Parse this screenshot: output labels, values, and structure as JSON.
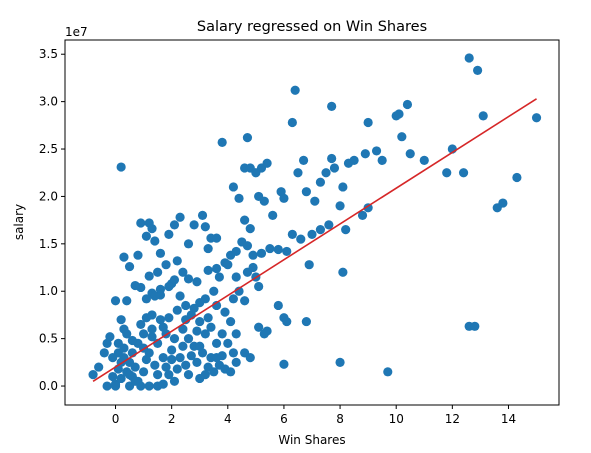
{
  "chart_data": {
    "type": "scatter",
    "title": "Salary regressed on Win Shares",
    "xlabel": "Win Shares",
    "ylabel": "salary",
    "y_offset_label": "1e7",
    "xlim": [
      -1.8,
      15.8
    ],
    "ylim": [
      -0.2,
      3.65
    ],
    "x_ticks": [
      0,
      2,
      4,
      6,
      8,
      10,
      12,
      14
    ],
    "x_tick_labels": [
      "0",
      "2",
      "4",
      "6",
      "8",
      "10",
      "12",
      "14"
    ],
    "y_ticks": [
      0.0,
      0.5,
      1.0,
      1.5,
      2.0,
      2.5,
      3.0,
      3.5
    ],
    "y_tick_labels": [
      "0.0",
      "0.5",
      "1.0",
      "1.5",
      "2.0",
      "2.5",
      "3.0",
      "3.5"
    ],
    "grid": false,
    "marker_color": "#1f77b4",
    "line_color": "#d62728",
    "series": [
      {
        "kind": "points",
        "points": [
          [
            0.2,
            2.31
          ],
          [
            0.3,
            1.36
          ],
          [
            0.5,
            1.26
          ],
          [
            0.8,
            1.38
          ],
          [
            0.9,
            1.72
          ],
          [
            1.2,
            1.72
          ],
          [
            1.3,
            1.66
          ],
          [
            1.1,
            1.58
          ],
          [
            1.4,
            1.53
          ],
          [
            1.6,
            1.4
          ],
          [
            1.9,
            1.6
          ],
          [
            2.1,
            1.7
          ],
          [
            2.3,
            1.78
          ],
          [
            2.8,
            1.7
          ],
          [
            3.1,
            1.8
          ],
          [
            3.2,
            1.68
          ],
          [
            3.4,
            1.56
          ],
          [
            3.6,
            1.56
          ],
          [
            3.3,
            1.45
          ],
          [
            2.6,
            1.5
          ],
          [
            2.2,
            1.32
          ],
          [
            1.8,
            1.28
          ],
          [
            1.5,
            1.2
          ],
          [
            1.2,
            1.16
          ],
          [
            0.9,
            1.04
          ],
          [
            0.7,
            1.06
          ],
          [
            1.3,
            0.98
          ],
          [
            1.6,
            1.02
          ],
          [
            2.0,
            1.08
          ],
          [
            2.4,
            1.2
          ],
          [
            2.6,
            1.13
          ],
          [
            2.9,
            1.1
          ],
          [
            3.3,
            1.22
          ],
          [
            3.6,
            1.24
          ],
          [
            3.9,
            1.3
          ],
          [
            4.1,
            1.38
          ],
          [
            4.3,
            1.42
          ],
          [
            4.5,
            1.52
          ],
          [
            4.7,
            1.48
          ],
          [
            4.9,
            1.38
          ],
          [
            5.2,
            1.4
          ],
          [
            5.5,
            1.45
          ],
          [
            5.8,
            1.44
          ],
          [
            6.1,
            1.42
          ],
          [
            6.3,
            1.6
          ],
          [
            6.6,
            1.55
          ],
          [
            7.0,
            1.6
          ],
          [
            7.3,
            1.65
          ],
          [
            7.6,
            1.7
          ],
          [
            8.0,
            1.9
          ],
          [
            8.2,
            1.65
          ],
          [
            8.8,
            1.8
          ],
          [
            9.0,
            1.88
          ],
          [
            4.2,
            2.1
          ],
          [
            4.4,
            1.98
          ],
          [
            4.6,
            1.75
          ],
          [
            4.8,
            1.66
          ],
          [
            5.1,
            2.0
          ],
          [
            5.3,
            1.95
          ],
          [
            5.6,
            1.8
          ],
          [
            5.9,
            2.05
          ],
          [
            6.0,
            1.98
          ],
          [
            6.5,
            2.25
          ],
          [
            6.8,
            2.05
          ],
          [
            7.1,
            1.95
          ],
          [
            7.3,
            2.15
          ],
          [
            7.5,
            2.25
          ],
          [
            7.7,
            2.4
          ],
          [
            7.8,
            2.3
          ],
          [
            8.1,
            2.1
          ],
          [
            8.3,
            2.35
          ],
          [
            8.5,
            2.38
          ],
          [
            8.9,
            2.45
          ],
          [
            9.3,
            2.48
          ],
          [
            9.5,
            2.38
          ],
          [
            10.2,
            2.63
          ],
          [
            10.5,
            2.45
          ],
          [
            11.0,
            2.38
          ],
          [
            11.8,
            2.25
          ],
          [
            12.4,
            2.25
          ],
          [
            12.0,
            2.5
          ],
          [
            6.7,
            2.38
          ],
          [
            6.3,
            2.78
          ],
          [
            4.7,
            2.62
          ],
          [
            3.8,
            2.57
          ],
          [
            4.6,
            2.3
          ],
          [
            4.8,
            2.3
          ],
          [
            5.0,
            2.25
          ],
          [
            5.2,
            2.3
          ],
          [
            5.4,
            2.35
          ],
          [
            6.4,
            3.12
          ],
          [
            7.7,
            2.95
          ],
          [
            9.0,
            2.78
          ],
          [
            10.0,
            2.85
          ],
          [
            10.1,
            2.87
          ],
          [
            10.4,
            2.97
          ],
          [
            12.6,
            3.46
          ],
          [
            12.9,
            3.33
          ],
          [
            13.1,
            2.85
          ],
          [
            15.0,
            2.83
          ],
          [
            14.3,
            2.2
          ],
          [
            13.6,
            1.88
          ],
          [
            13.8,
            1.93
          ],
          [
            12.6,
            0.63
          ],
          [
            12.8,
            0.63
          ],
          [
            9.7,
            0.15
          ],
          [
            8.0,
            0.25
          ],
          [
            8.1,
            1.2
          ],
          [
            6.9,
            1.28
          ],
          [
            6.8,
            0.68
          ],
          [
            6.0,
            0.72
          ],
          [
            6.1,
            0.68
          ],
          [
            5.8,
            0.85
          ],
          [
            5.3,
            0.55
          ],
          [
            5.1,
            0.62
          ],
          [
            5.4,
            0.58
          ],
          [
            6.0,
            0.23
          ],
          [
            5.1,
            1.05
          ],
          [
            5.0,
            1.15
          ],
          [
            4.9,
            1.25
          ],
          [
            4.7,
            1.2
          ],
          [
            4.4,
            1.0
          ],
          [
            4.6,
            0.9
          ],
          [
            4.2,
            0.92
          ],
          [
            4.3,
            1.15
          ],
          [
            4.0,
            1.28
          ],
          [
            3.7,
            1.15
          ],
          [
            3.5,
            1.0
          ],
          [
            3.2,
            0.92
          ],
          [
            3.0,
            0.88
          ],
          [
            2.8,
            0.82
          ],
          [
            2.5,
            0.85
          ],
          [
            2.3,
            0.95
          ],
          [
            2.1,
            1.12
          ],
          [
            1.9,
            1.05
          ],
          [
            1.6,
            0.96
          ],
          [
            1.4,
            0.95
          ],
          [
            1.1,
            0.92
          ],
          [
            0.9,
            0.65
          ],
          [
            1.1,
            0.72
          ],
          [
            1.3,
            0.75
          ],
          [
            1.6,
            0.7
          ],
          [
            1.9,
            0.72
          ],
          [
            2.2,
            0.8
          ],
          [
            2.5,
            0.7
          ],
          [
            2.7,
            0.75
          ],
          [
            3.0,
            0.68
          ],
          [
            3.3,
            0.72
          ],
          [
            3.6,
            0.85
          ],
          [
            3.9,
            0.78
          ],
          [
            4.1,
            0.68
          ],
          [
            4.3,
            0.55
          ],
          [
            4.2,
            0.35
          ],
          [
            4.0,
            0.45
          ],
          [
            3.8,
            0.55
          ],
          [
            3.6,
            0.45
          ],
          [
            3.4,
            0.62
          ],
          [
            3.2,
            0.55
          ],
          [
            2.9,
            0.58
          ],
          [
            2.6,
            0.5
          ],
          [
            2.4,
            0.42
          ],
          [
            2.1,
            0.5
          ],
          [
            1.8,
            0.55
          ],
          [
            1.5,
            0.45
          ],
          [
            1.3,
            0.52
          ],
          [
            1.0,
            0.55
          ],
          [
            0.8,
            0.45
          ],
          [
            0.6,
            0.35
          ],
          [
            0.4,
            0.55
          ],
          [
            0.3,
            0.6
          ],
          [
            0.1,
            0.45
          ],
          [
            -0.2,
            0.52
          ],
          [
            -0.3,
            0.45
          ],
          [
            -0.6,
            0.2
          ],
          [
            -0.8,
            0.12
          ],
          [
            -0.3,
            0.0
          ],
          [
            -0.1,
            0.1
          ],
          [
            0.0,
            0.02
          ],
          [
            0.1,
            0.18
          ],
          [
            0.2,
            0.08
          ],
          [
            0.3,
            0.3
          ],
          [
            0.5,
            0.25
          ],
          [
            0.6,
            0.1
          ],
          [
            0.7,
            0.2
          ],
          [
            0.8,
            0.05
          ],
          [
            1.0,
            0.15
          ],
          [
            1.1,
            0.28
          ],
          [
            1.2,
            0.35
          ],
          [
            1.4,
            0.22
          ],
          [
            1.5,
            0.12
          ],
          [
            1.7,
            0.3
          ],
          [
            1.8,
            0.2
          ],
          [
            2.0,
            0.28
          ],
          [
            2.2,
            0.18
          ],
          [
            2.3,
            0.3
          ],
          [
            2.5,
            0.22
          ],
          [
            2.7,
            0.32
          ],
          [
            2.9,
            0.25
          ],
          [
            3.1,
            0.35
          ],
          [
            3.3,
            0.2
          ],
          [
            3.5,
            0.15
          ],
          [
            3.7,
            0.22
          ],
          [
            3.9,
            0.18
          ],
          [
            4.1,
            0.15
          ],
          [
            4.3,
            0.25
          ],
          [
            4.6,
            0.35
          ],
          [
            4.8,
            0.3
          ],
          [
            1.2,
            0.0
          ],
          [
            1.5,
            0.0
          ],
          [
            1.7,
            0.02
          ],
          [
            0.9,
            0.0
          ],
          [
            0.5,
            0.0
          ],
          [
            0.0,
            0.0
          ],
          [
            -0.4,
            0.35
          ],
          [
            0.2,
            0.7
          ],
          [
            0.4,
            0.9
          ],
          [
            0.0,
            0.9
          ],
          [
            0.6,
            0.48
          ],
          [
            1.0,
            0.4
          ],
          [
            1.3,
            0.6
          ],
          [
            1.7,
            0.62
          ],
          [
            2.0,
            0.38
          ],
          [
            2.4,
            0.6
          ],
          [
            2.8,
            0.42
          ],
          [
            3.0,
            0.42
          ],
          [
            3.4,
            0.3
          ],
          [
            3.6,
            0.3
          ],
          [
            3.8,
            0.32
          ],
          [
            0.4,
            0.15
          ],
          [
            0.7,
            0.05
          ],
          [
            0.2,
            0.25
          ],
          [
            0.1,
            0.35
          ],
          [
            1.9,
            0.12
          ],
          [
            2.1,
            0.05
          ],
          [
            2.6,
            0.12
          ],
          [
            3.0,
            0.08
          ],
          [
            3.2,
            0.12
          ],
          [
            0.3,
            0.4
          ],
          [
            -0.1,
            0.3
          ],
          [
            0.5,
            0.12
          ]
        ]
      },
      {
        "kind": "regression-line",
        "x": [
          -0.8,
          15.0
        ],
        "y": [
          0.05,
          3.03
        ]
      }
    ]
  }
}
